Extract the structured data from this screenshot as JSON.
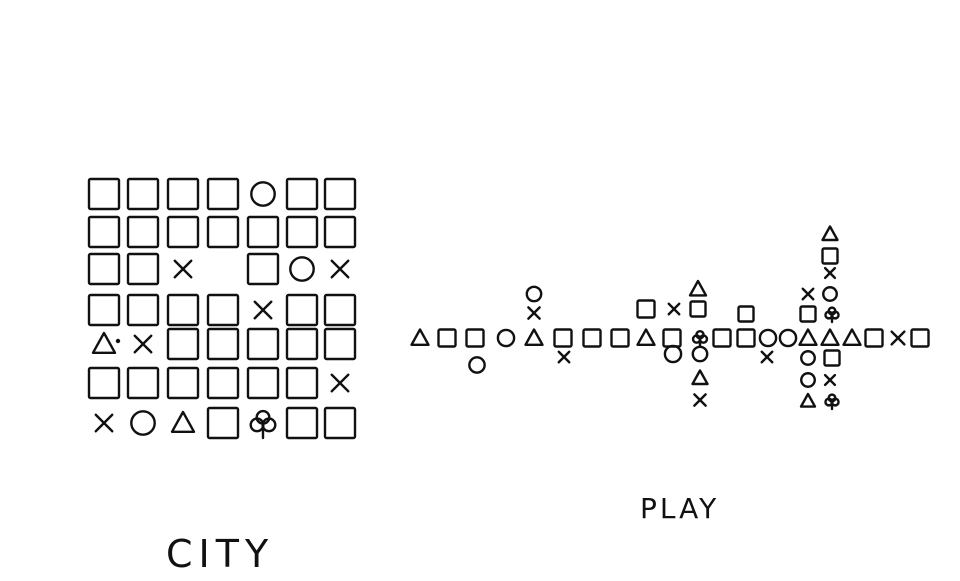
{
  "captions": {
    "city": "CITY",
    "play": "PLAY"
  },
  "drawings": {
    "city": {
      "rows": [
        [
          "square",
          "square",
          "square",
          "square",
          "circle",
          "square",
          "square"
        ],
        [
          "square",
          "square",
          "square",
          "square",
          "square",
          "square",
          "square"
        ],
        [
          "square",
          "square",
          "x",
          "",
          "square",
          "circle",
          "x"
        ],
        [
          "square",
          "square",
          "square",
          "square",
          "x",
          "square",
          "square"
        ],
        [
          "triangle",
          "x",
          "square",
          "square",
          "square",
          "square",
          "square"
        ],
        [
          "square",
          "square",
          "square",
          "square",
          "square",
          "square",
          "x"
        ],
        [
          "x",
          "circle",
          "triangle",
          "square",
          "club",
          "square",
          "square"
        ]
      ]
    },
    "play": {
      "main_line": [
        "triangle",
        "square",
        "square",
        "circle",
        "triangle",
        "square",
        "square",
        "square",
        "triangle",
        "square",
        "club",
        "square",
        "square",
        "circle",
        "circle",
        "triangle",
        "triangle",
        "triangle",
        "square",
        "x",
        "square"
      ]
    }
  }
}
